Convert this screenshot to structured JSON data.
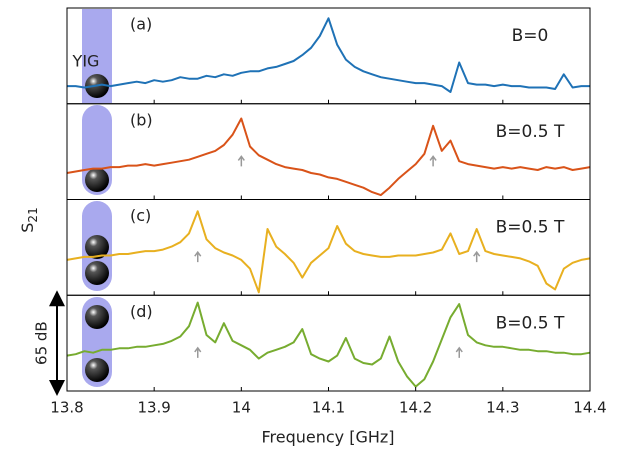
{
  "chart_data": {
    "type": "line",
    "xlabel": "Frequency [GHz]",
    "ylabel": {
      "text": "S",
      "subscript": "21"
    },
    "scale_bar": {
      "value": 65,
      "label": "65 dB"
    },
    "yig_label": "YIG",
    "xlim": [
      13.8,
      14.4
    ],
    "xticks": [
      13.8,
      13.9,
      14,
      14.1,
      14.2,
      14.3,
      14.4
    ],
    "ylim": [
      0,
      65
    ],
    "x": [
      13.8,
      13.81,
      13.82,
      13.83,
      13.84,
      13.85,
      13.86,
      13.87,
      13.88,
      13.89,
      13.9,
      13.91,
      13.92,
      13.93,
      13.94,
      13.95,
      13.96,
      13.97,
      13.98,
      13.99,
      14.0,
      14.01,
      14.02,
      14.03,
      14.04,
      14.05,
      14.06,
      14.07,
      14.08,
      14.09,
      14.1,
      14.11,
      14.12,
      14.13,
      14.14,
      14.15,
      14.16,
      14.17,
      14.18,
      14.19,
      14.2,
      14.21,
      14.22,
      14.23,
      14.24,
      14.25,
      14.26,
      14.27,
      14.28,
      14.29,
      14.3,
      14.31,
      14.32,
      14.33,
      14.34,
      14.35,
      14.36,
      14.37,
      14.38,
      14.39,
      14.4
    ],
    "series": [
      {
        "panel": "(a)",
        "name": "B=0",
        "color": "#1f72b6",
        "arrows_x": [],
        "values": [
          12,
          12,
          11,
          12,
          13,
          12,
          13,
          14,
          15,
          14,
          16,
          15,
          16,
          18,
          17,
          17,
          19,
          18,
          20,
          19,
          21,
          22,
          22,
          24,
          25,
          27,
          29,
          33,
          38,
          46,
          58,
          40,
          30,
          25,
          22,
          20,
          18,
          17,
          16,
          15,
          14,
          14,
          13,
          12,
          8,
          28,
          14,
          13,
          13,
          12,
          13,
          12,
          12,
          11,
          11,
          11,
          10,
          20,
          11,
          12,
          12
        ]
      },
      {
        "panel": "(b)",
        "name": "B=0.5 T",
        "color": "#d95319",
        "arrows_x": [
          14.0,
          14.22
        ],
        "values": [
          18,
          19,
          20,
          21,
          21,
          22,
          22,
          23,
          23,
          24,
          23,
          24,
          25,
          26,
          27,
          29,
          31,
          33,
          37,
          44,
          55,
          36,
          30,
          27,
          24,
          22,
          21,
          20,
          18,
          17,
          15,
          14,
          12,
          10,
          8,
          5,
          3,
          8,
          14,
          19,
          24,
          31,
          50,
          33,
          40,
          26,
          24,
          23,
          22,
          21,
          22,
          21,
          22,
          21,
          20,
          22,
          21,
          22,
          20,
          21,
          22
        ]
      },
      {
        "panel": "(c)",
        "name": "B=0.5 T",
        "color": "#e8b020",
        "arrows_x": [
          13.95,
          14.27
        ],
        "values": [
          24,
          25,
          26,
          26,
          27,
          27,
          28,
          28,
          29,
          30,
          30,
          31,
          33,
          36,
          42,
          57,
          38,
          32,
          29,
          27,
          24,
          18,
          2,
          45,
          33,
          28,
          22,
          12,
          22,
          27,
          32,
          47,
          35,
          30,
          28,
          27,
          26,
          26,
          27,
          27,
          27,
          28,
          29,
          31,
          42,
          28,
          30,
          45,
          30,
          28,
          27,
          26,
          25,
          23,
          20,
          8,
          4,
          18,
          22,
          24,
          25
        ]
      },
      {
        "panel": "(d)",
        "name": "B=0.5 T",
        "color": "#77ac30",
        "arrows_x": [
          13.95,
          14.25
        ],
        "values": [
          24,
          25,
          27,
          26,
          28,
          28,
          29,
          29,
          30,
          30,
          31,
          32,
          34,
          37,
          44,
          60,
          38,
          33,
          46,
          34,
          31,
          28,
          22,
          26,
          28,
          30,
          33,
          42,
          25,
          22,
          20,
          24,
          36,
          22,
          19,
          18,
          22,
          37,
          20,
          10,
          3,
          8,
          20,
          35,
          50,
          59,
          38,
          33,
          31,
          30,
          30,
          29,
          28,
          28,
          27,
          27,
          26,
          26,
          25,
          25,
          26
        ]
      }
    ]
  }
}
